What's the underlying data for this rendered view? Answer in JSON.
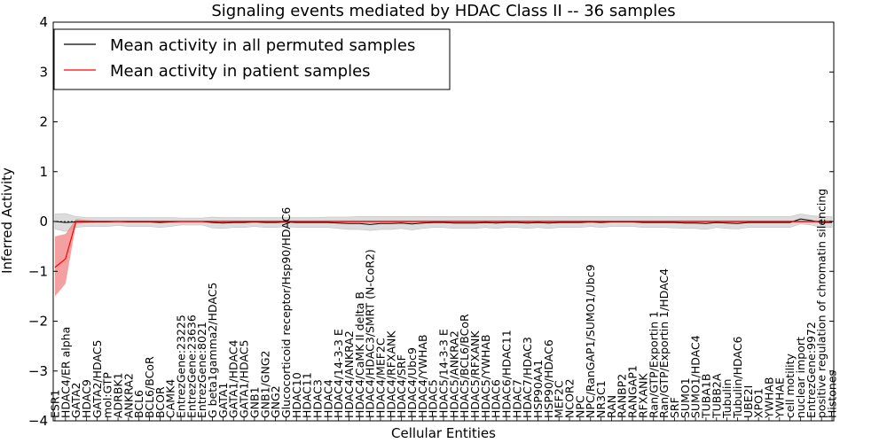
{
  "chart_data": {
    "type": "line",
    "title": "Signaling events mediated by HDAC Class II -- 36 samples",
    "xlabel": "Cellular Entities",
    "ylabel": "Inferred Activity",
    "ylim": [
      -4,
      4
    ],
    "yticks": [
      -4,
      -3,
      -2,
      -1,
      0,
      1,
      2,
      3,
      4
    ],
    "legend_position": "top-left",
    "colors": {
      "permuted": "#000000",
      "patient": "#ff0000",
      "permuted_band": "#d3d3d3",
      "patient_band": "#f28080"
    },
    "categories": [
      "ESR1",
      "HDAC4/ER alpha",
      "GATA2",
      "HDAC9",
      "GATA2/HDAC5",
      "mol:GTP",
      "ADRBK1",
      "ANKRA2",
      "BCL6",
      "BCL6/BCoR",
      "BCOR",
      "CAMK4",
      "EntrezGene:23225",
      "EntrezGene:23636",
      "EntrezGene:8021",
      "G beta1gamma2/HDAC5",
      "GATA1",
      "GATA1/HDAC4",
      "GATA1/HDAC5",
      "GNB1",
      "GNB1/GNG2",
      "GNG2",
      "Glucocorticoid receptor/Hsp90/HDAC6",
      "HDAC10",
      "HDAC11",
      "HDAC3",
      "HDAC4",
      "HDAC4/14-3-3 E",
      "HDAC4/ANKRA2",
      "HDAC4/CaMK II delta B",
      "HDAC4/HDAC3/SMRT (N-CoR2)",
      "HDAC4/MEF2C",
      "HDAC4/RFXANK",
      "HDAC4/SRF",
      "HDAC4/Ubc9",
      "HDAC4/YWHAB",
      "HDAC5",
      "HDAC5/14-3-3 E",
      "HDAC5/ANKRA2",
      "HDAC5/BCL6/BCoR",
      "HDAC5/RFXANK",
      "HDAC5/YWHAB",
      "HDAC6",
      "HDAC6/HDAC11",
      "HDAC7",
      "HDAC7/HDAC3",
      "HSP90AA1",
      "HSP90/HDAC6",
      "MEF2C",
      "NCOR2",
      "NPC",
      "NPC/RanGAP1/SUMO1/Ubc9",
      "NR3C1",
      "RAN",
      "RANBP2",
      "RANGAP1",
      "RFXANK",
      "Ran/GTP/Exportin 1",
      "Ran/GTP/Exportin 1/HDAC4",
      "SRF",
      "SUMO1",
      "SUMO1/HDAC4",
      "TUBA1B",
      "TUBB2A",
      "Tubulin",
      "Tubulin/HDAC6",
      "UBE2I",
      "XPO1",
      "YWHAB",
      "YWHAE",
      "cell motility",
      "nuclear import",
      "EntrezGene:9972",
      "positive regulation of chromatin silencing",
      "Histones"
    ],
    "series": [
      {
        "name": "Mean activity in all permuted samples",
        "values": [
          0,
          -0.02,
          -0.01,
          -0.01,
          -0.01,
          -0.01,
          0,
          -0.01,
          -0.01,
          -0.01,
          -0.02,
          -0.01,
          0,
          0,
          0,
          -0.02,
          -0.03,
          -0.02,
          -0.02,
          -0.01,
          -0.02,
          -0.02,
          -0.01,
          -0.02,
          -0.02,
          -0.02,
          -0.02,
          -0.03,
          -0.04,
          -0.04,
          -0.06,
          -0.04,
          -0.04,
          -0.03,
          -0.05,
          -0.03,
          -0.02,
          -0.02,
          -0.03,
          -0.03,
          -0.03,
          -0.02,
          -0.03,
          -0.02,
          -0.02,
          -0.03,
          -0.02,
          -0.03,
          -0.02,
          -0.02,
          -0.02,
          -0.01,
          -0.02,
          -0.01,
          -0.01,
          -0.01,
          -0.02,
          -0.02,
          -0.02,
          -0.02,
          -0.03,
          -0.03,
          -0.04,
          -0.02,
          -0.03,
          -0.04,
          -0.02,
          -0.02,
          -0.02,
          -0.02,
          -0.02,
          0.05,
          0.02,
          -0.02,
          -0.02
        ],
        "lower": [
          -0.15,
          -0.2,
          -0.12,
          -0.1,
          -0.1,
          -0.1,
          -0.08,
          -0.1,
          -0.1,
          -0.1,
          -0.12,
          -0.1,
          -0.07,
          -0.07,
          -0.07,
          -0.13,
          -0.14,
          -0.12,
          -0.12,
          -0.1,
          -0.12,
          -0.12,
          -0.1,
          -0.12,
          -0.12,
          -0.12,
          -0.12,
          -0.14,
          -0.16,
          -0.16,
          -0.18,
          -0.16,
          -0.16,
          -0.14,
          -0.17,
          -0.14,
          -0.12,
          -0.12,
          -0.14,
          -0.14,
          -0.14,
          -0.12,
          -0.14,
          -0.12,
          -0.12,
          -0.14,
          -0.12,
          -0.14,
          -0.12,
          -0.12,
          -0.12,
          -0.1,
          -0.12,
          -0.1,
          -0.1,
          -0.1,
          -0.12,
          -0.12,
          -0.12,
          -0.13,
          -0.14,
          -0.14,
          -0.16,
          -0.12,
          -0.14,
          -0.15,
          -0.12,
          -0.12,
          -0.12,
          -0.12,
          -0.12,
          -0.05,
          -0.07,
          -0.12,
          -0.12
        ],
        "upper": [
          0.15,
          0.16,
          0.1,
          0.08,
          0.08,
          0.08,
          0.08,
          0.08,
          0.08,
          0.08,
          0.08,
          0.08,
          0.07,
          0.07,
          0.07,
          0.09,
          0.08,
          0.08,
          0.08,
          0.08,
          0.08,
          0.08,
          0.08,
          0.08,
          0.08,
          0.08,
          0.09,
          0.09,
          0.09,
          0.1,
          0.1,
          0.1,
          0.1,
          0.1,
          0.1,
          0.1,
          0.1,
          0.1,
          0.1,
          0.1,
          0.1,
          0.1,
          0.1,
          0.1,
          0.1,
          0.1,
          0.1,
          0.1,
          0.1,
          0.1,
          0.1,
          0.1,
          0.1,
          0.1,
          0.1,
          0.1,
          0.1,
          0.1,
          0.1,
          0.1,
          0.1,
          0.1,
          0.1,
          0.1,
          0.1,
          0.1,
          0.1,
          0.1,
          0.1,
          0.1,
          0.1,
          0.15,
          0.12,
          0.1,
          0.1
        ]
      },
      {
        "name": "Mean activity in patient samples",
        "values": [
          -0.92,
          -0.75,
          0,
          0,
          0,
          0,
          0,
          0,
          0,
          0,
          0,
          0,
          0,
          0,
          0,
          0,
          0,
          0,
          0,
          0,
          0,
          0,
          0,
          0,
          0,
          0,
          0,
          0,
          0,
          0,
          0,
          0,
          0,
          0,
          0,
          0,
          0,
          0,
          0,
          0,
          0,
          0,
          0,
          0,
          0,
          0,
          0,
          0,
          0,
          0,
          0,
          0,
          0,
          0,
          0,
          0,
          0,
          0,
          0,
          0,
          0,
          0,
          0,
          0,
          0,
          0,
          0,
          0,
          0,
          0,
          0,
          0,
          0,
          0,
          0
        ],
        "lower": [
          -1.5,
          -1.25,
          -0.05,
          -0.03,
          -0.02,
          -0.02,
          -0.02,
          -0.02,
          -0.02,
          -0.02,
          -0.02,
          -0.02,
          -0.02,
          -0.02,
          -0.02,
          -0.02,
          -0.02,
          -0.02,
          -0.02,
          -0.02,
          -0.02,
          -0.02,
          -0.02,
          -0.02,
          -0.02,
          -0.02,
          -0.02,
          -0.02,
          -0.02,
          -0.02,
          -0.02,
          -0.02,
          -0.02,
          -0.02,
          -0.02,
          -0.02,
          -0.02,
          -0.02,
          -0.02,
          -0.02,
          -0.02,
          -0.02,
          -0.02,
          -0.02,
          -0.02,
          -0.02,
          -0.02,
          -0.02,
          -0.02,
          -0.02,
          -0.02,
          -0.02,
          -0.02,
          -0.02,
          -0.02,
          -0.02,
          -0.02,
          -0.02,
          -0.02,
          -0.02,
          -0.02,
          -0.02,
          -0.02,
          -0.02,
          -0.02,
          -0.02,
          -0.02,
          -0.02,
          -0.02,
          -0.02,
          -0.02,
          -0.02,
          -0.02,
          -0.02,
          -0.02
        ],
        "upper": [
          -0.3,
          -0.25,
          0.05,
          0.03,
          0.02,
          0.02,
          0.02,
          0.02,
          0.02,
          0.02,
          0.02,
          0.02,
          0.02,
          0.02,
          0.02,
          0.02,
          0.02,
          0.02,
          0.02,
          0.02,
          0.02,
          0.02,
          0.02,
          0.02,
          0.02,
          0.02,
          0.02,
          0.02,
          0.02,
          0.02,
          0.02,
          0.02,
          0.02,
          0.02,
          0.02,
          0.02,
          0.02,
          0.02,
          0.02,
          0.02,
          0.02,
          0.02,
          0.02,
          0.02,
          0.02,
          0.02,
          0.02,
          0.02,
          0.02,
          0.02,
          0.02,
          0.02,
          0.02,
          0.02,
          0.02,
          0.02,
          0.02,
          0.02,
          0.02,
          0.02,
          0.02,
          0.02,
          0.02,
          0.02,
          0.02,
          0.02,
          0.02,
          0.02,
          0.02,
          0.02,
          0.02,
          0.02,
          0.02,
          0.02,
          0.02
        ]
      }
    ]
  }
}
